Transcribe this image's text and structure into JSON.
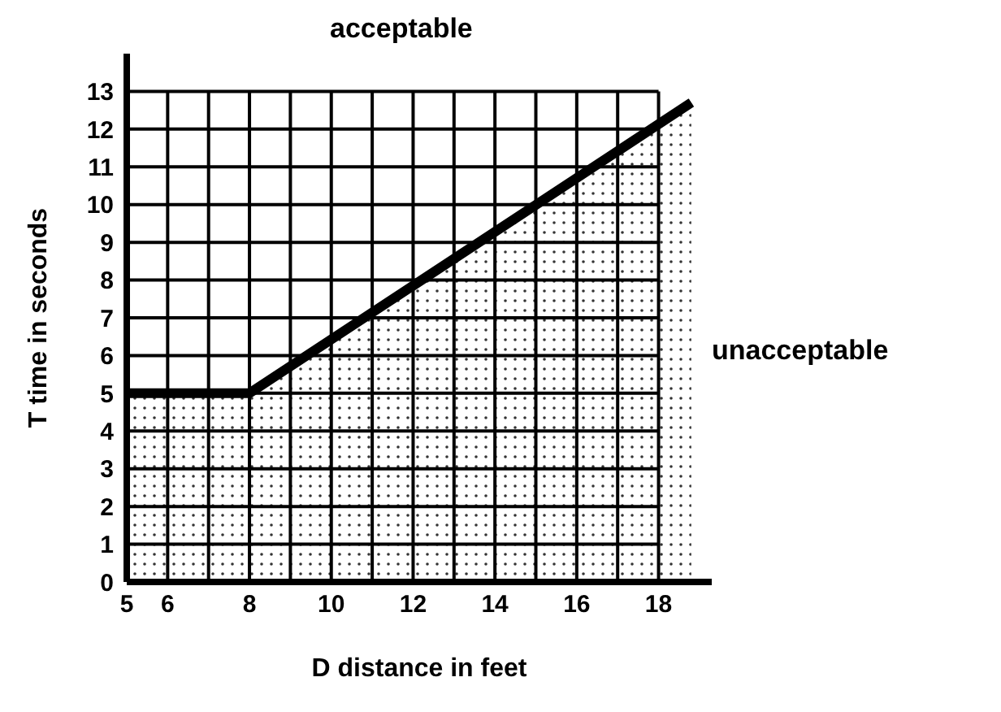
{
  "chart_data": {
    "type": "area",
    "xlabel": "D   distance in feet",
    "ylabel": "T  time in seconds",
    "annotations": [
      "acceptable",
      "unacceptable"
    ],
    "x": [
      5,
      8,
      18.8
    ],
    "series": [
      {
        "color": "#000000",
        "values": [
          5,
          5,
          12.7
        ]
      }
    ],
    "xlim": [
      5,
      19.3
    ],
    "ylim": [
      0,
      14
    ],
    "xticks": [
      5,
      6,
      {
        "value": 7,
        "label": null
      },
      8,
      {
        "value": 9,
        "label": null
      },
      10,
      {
        "value": 11,
        "label": null
      },
      12,
      {
        "value": 13,
        "label": null
      },
      14,
      {
        "value": 15,
        "label": null
      },
      16,
      {
        "value": 17,
        "label": null
      },
      18
    ],
    "yticks": [
      0,
      1,
      2,
      3,
      4,
      5,
      6,
      7,
      8,
      9,
      10,
      11,
      12,
      13
    ],
    "grid": true,
    "marker": "none",
    "line_style": "solid"
  }
}
